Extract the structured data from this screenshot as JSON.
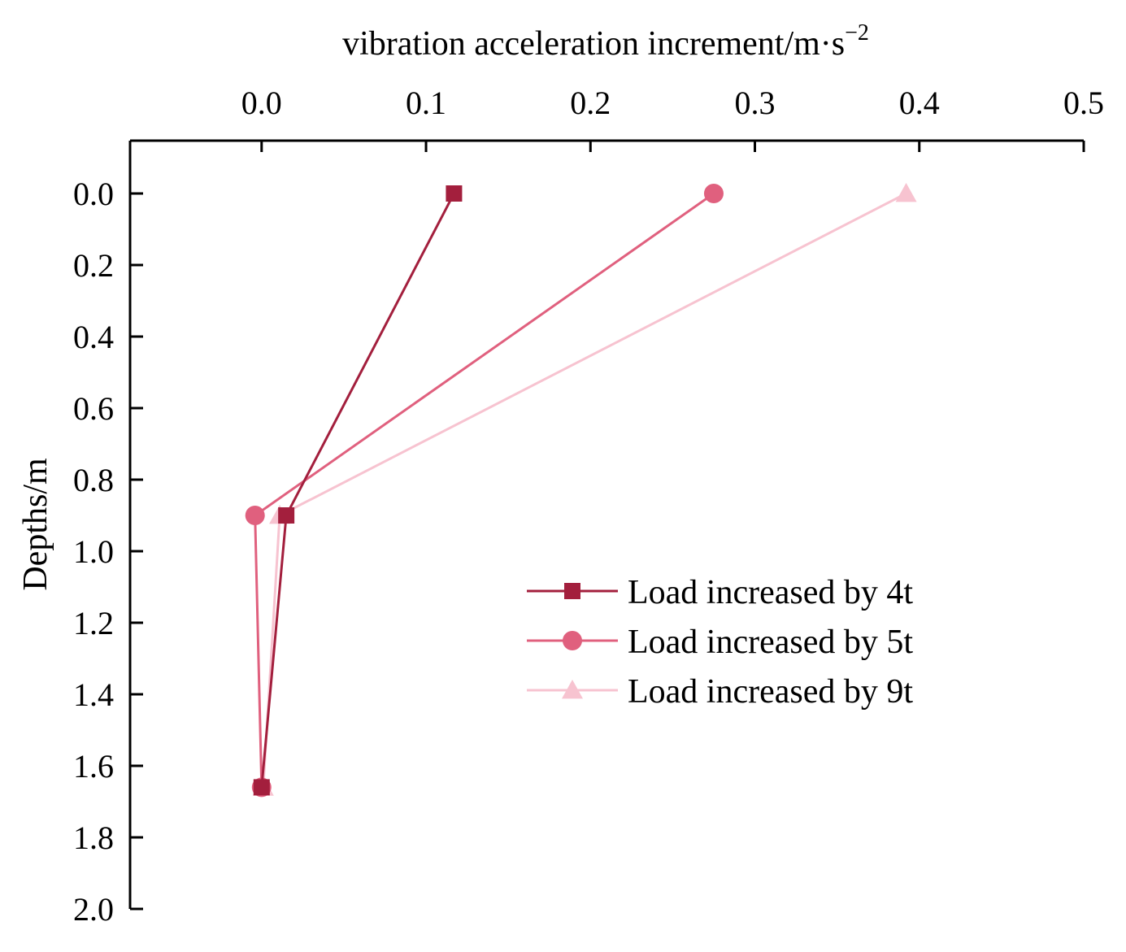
{
  "chart_data": {
    "type": "line",
    "title": "",
    "xlabel": "vibration acceleration increment/m·s",
    "xlabel_superscript": "−2",
    "ylabel": "Depths/m",
    "x_axis_position": "top",
    "y_axis_inverted": true,
    "xlim": [
      -0.08,
      0.5
    ],
    "ylim": [
      0.0,
      2.0
    ],
    "x_ticks": [
      0.0,
      0.1,
      0.2,
      0.3,
      0.4,
      0.5
    ],
    "x_tick_labels": [
      "0.0",
      "0.1",
      "0.2",
      "0.3",
      "0.4",
      "0.5"
    ],
    "y_ticks": [
      0.0,
      0.2,
      0.4,
      0.6,
      0.8,
      1.0,
      1.2,
      1.4,
      1.6,
      1.8,
      2.0
    ],
    "y_tick_labels": [
      "0.0",
      "0.2",
      "0.4",
      "0.6",
      "0.8",
      "1.0",
      "1.2",
      "1.4",
      "1.6",
      "1.8",
      "2.0"
    ],
    "grid": false,
    "legend_position": "right-middle",
    "series": [
      {
        "name": "Load increased by 4t",
        "marker": "square",
        "color": "#A31F3D",
        "points": [
          {
            "x": 0.117,
            "y": 0.0
          },
          {
            "x": 0.015,
            "y": 0.9
          },
          {
            "x": 0.0,
            "y": 1.66
          }
        ]
      },
      {
        "name": "Load increased by 5t",
        "marker": "circle",
        "color": "#E0607E",
        "points": [
          {
            "x": 0.275,
            "y": 0.0
          },
          {
            "x": -0.004,
            "y": 0.9
          },
          {
            "x": 0.0,
            "y": 1.66
          }
        ]
      },
      {
        "name": "Load increased by 9t",
        "marker": "triangle",
        "color": "#F7C3D0",
        "points": [
          {
            "x": 0.392,
            "y": 0.0
          },
          {
            "x": 0.011,
            "y": 0.9
          },
          {
            "x": 0.001,
            "y": 1.66
          }
        ]
      }
    ]
  }
}
